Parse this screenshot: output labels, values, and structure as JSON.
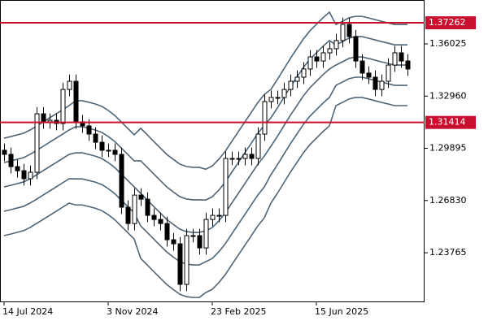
{
  "chart_data": {
    "type": "candlestick",
    "categories": [
      "14 Jul 2024",
      null,
      null,
      null,
      null,
      null,
      null,
      null,
      null,
      null,
      null,
      null,
      null,
      null,
      null,
      null,
      "3 Nov 2024",
      null,
      null,
      null,
      null,
      null,
      null,
      null,
      null,
      null,
      null,
      null,
      null,
      null,
      null,
      null,
      "23 Feb 2025",
      null,
      null,
      null,
      null,
      null,
      null,
      null,
      null,
      null,
      null,
      null,
      null,
      null,
      null,
      null,
      "15 Jun 2025",
      null,
      null,
      null,
      null,
      null,
      null,
      null,
      null,
      null,
      null,
      null,
      null,
      null,
      null
    ],
    "open": [
      1.2978,
      1.2954,
      1.2882,
      1.2858,
      1.2811,
      1.2849,
      1.3192,
      1.3145,
      1.3154,
      1.3135,
      1.3335,
      1.3383,
      1.3145,
      1.3121,
      1.3073,
      1.3025,
      1.2978,
      1.2978,
      1.2954,
      1.2644,
      1.2548,
      1.2715,
      1.2691,
      1.2596,
      1.2572,
      1.2548,
      1.2453,
      1.2429,
      1.2191,
      1.2477,
      1.2477,
      1.2405,
      1.2572,
      1.2596,
      1.2596,
      1.293,
      1.293,
      1.293,
      1.2954,
      1.293,
      1.3073,
      1.3264,
      1.3288,
      1.3288,
      1.3335,
      1.3383,
      1.3407,
      1.3455,
      1.3526,
      1.3502,
      1.355,
      1.3574,
      1.3622,
      1.3717,
      1.3645,
      1.3502,
      1.3431,
      1.3407,
      1.3335,
      1.3383,
      1.3478,
      1.355,
      1.3502
    ],
    "high": [
      1.3018,
      1.2994,
      1.2922,
      1.2898,
      1.2889,
      1.3232,
      1.3232,
      1.3194,
      1.3194,
      1.3375,
      1.3423,
      1.3423,
      1.3185,
      1.3161,
      1.3113,
      1.3065,
      1.3018,
      1.3018,
      1.2994,
      1.2684,
      1.2755,
      1.2755,
      1.2731,
      1.2636,
      1.2612,
      1.2588,
      1.2493,
      1.2469,
      1.2517,
      1.2517,
      1.2517,
      1.2612,
      1.2636,
      1.2636,
      1.297,
      1.297,
      1.297,
      1.2994,
      1.2994,
      1.3113,
      1.3304,
      1.3328,
      1.3328,
      1.3375,
      1.3423,
      1.3447,
      1.3495,
      1.3566,
      1.3566,
      1.359,
      1.3614,
      1.3662,
      1.3757,
      1.3757,
      1.3685,
      1.3542,
      1.3471,
      1.3447,
      1.3423,
      1.3518,
      1.359,
      1.359,
      1.3542
    ],
    "low": [
      1.2914,
      1.2842,
      1.2818,
      1.2771,
      1.2771,
      1.2809,
      1.3105,
      1.3105,
      1.3095,
      1.3095,
      1.3295,
      1.3105,
      1.3081,
      1.3033,
      1.2985,
      1.2938,
      1.2938,
      1.2914,
      1.2604,
      1.2508,
      1.2508,
      1.2651,
      1.2556,
      1.2532,
      1.2508,
      1.2413,
      1.2389,
      1.2151,
      1.2151,
      1.2437,
      1.2365,
      1.2365,
      1.2532,
      1.2556,
      1.2556,
      1.289,
      1.289,
      1.289,
      1.289,
      1.289,
      1.3033,
      1.3224,
      1.3248,
      1.3248,
      1.3295,
      1.3343,
      1.3367,
      1.3415,
      1.3462,
      1.3462,
      1.351,
      1.3534,
      1.3582,
      1.3605,
      1.3462,
      1.3391,
      1.3367,
      1.3295,
      1.3295,
      1.3343,
      1.3438,
      1.3462,
      1.3415
    ],
    "close": [
      1.2954,
      1.2882,
      1.2858,
      1.2811,
      1.2849,
      1.3192,
      1.3145,
      1.3154,
      1.3135,
      1.3335,
      1.3383,
      1.3145,
      1.3121,
      1.3073,
      1.3025,
      1.2978,
      1.2978,
      1.2954,
      1.2644,
      1.2548,
      1.2715,
      1.2691,
      1.2596,
      1.2572,
      1.2548,
      1.2453,
      1.2429,
      1.2191,
      1.2477,
      1.2477,
      1.2405,
      1.2572,
      1.2596,
      1.2596,
      1.293,
      1.293,
      1.293,
      1.2954,
      1.293,
      1.3073,
      1.3264,
      1.3288,
      1.3288,
      1.3335,
      1.3383,
      1.3407,
      1.3455,
      1.3526,
      1.3502,
      1.355,
      1.3574,
      1.3622,
      1.3717,
      1.3645,
      1.3502,
      1.3431,
      1.3407,
      1.3335,
      1.3383,
      1.3478,
      1.355,
      1.3502,
      1.3455
    ],
    "bands": [
      {
        "values": [
          1.3049,
          1.3058,
          1.3068,
          1.3078,
          1.3097,
          1.312,
          1.3144,
          1.3168,
          1.3192,
          1.3216,
          1.324,
          1.3269,
          1.3269,
          1.326,
          1.325,
          1.3236,
          1.3212,
          1.3183,
          1.3145,
          1.3107,
          1.3069,
          1.3107,
          1.3069,
          1.303,
          1.2992,
          1.2954,
          1.2925,
          1.2897,
          1.2883,
          1.2878,
          1.2878,
          1.2867,
          1.2886,
          1.2925,
          1.2972,
          1.303,
          1.3087,
          1.3144,
          1.3201,
          1.3258,
          1.3306,
          1.3335,
          1.3393,
          1.3455,
          1.3517,
          1.3574,
          1.3631,
          1.3679,
          1.3717,
          1.3755,
          1.3789,
          1.3716,
          1.3735,
          1.3755,
          1.3764,
          1.3764,
          1.3755,
          1.3745,
          1.3735,
          1.3726,
          1.3716,
          1.3716,
          1.3716
        ]
      },
      {
        "values": [
          1.2906,
          1.2915,
          1.2925,
          1.2935,
          1.2954,
          1.2977,
          1.3001,
          1.3025,
          1.3049,
          1.3073,
          1.3097,
          1.3116,
          1.3116,
          1.3107,
          1.3097,
          1.3083,
          1.3059,
          1.303,
          1.2992,
          1.2954,
          1.2916,
          1.2916,
          1.2878,
          1.2839,
          1.2801,
          1.2763,
          1.2734,
          1.2706,
          1.2692,
          1.2687,
          1.2687,
          1.2686,
          1.2705,
          1.2744,
          1.2791,
          1.2849,
          1.2906,
          1.2963,
          1.302,
          1.3077,
          1.3125,
          1.3168,
          1.3226,
          1.3288,
          1.335,
          1.3407,
          1.3464,
          1.3512,
          1.355,
          1.3588,
          1.3622,
          1.3597,
          1.3616,
          1.3636,
          1.3645,
          1.3645,
          1.3636,
          1.3626,
          1.3616,
          1.3607,
          1.3597,
          1.3597,
          1.3597
        ]
      },
      {
        "values": [
          1.2763,
          1.2772,
          1.2782,
          1.2792,
          1.2811,
          1.2834,
          1.2858,
          1.2882,
          1.2906,
          1.293,
          1.2954,
          1.2963,
          1.2963,
          1.2954,
          1.2944,
          1.293,
          1.2906,
          1.2877,
          1.2839,
          1.2801,
          1.2763,
          1.2725,
          1.2687,
          1.2648,
          1.261,
          1.2572,
          1.2543,
          1.2515,
          1.2501,
          1.2496,
          1.2496,
          1.2505,
          1.2524,
          1.2563,
          1.261,
          1.2668,
          1.2725,
          1.2782,
          1.2839,
          1.2896,
          1.2944,
          1.3001,
          1.3059,
          1.3121,
          1.3183,
          1.324,
          1.3297,
          1.3345,
          1.3383,
          1.3421,
          1.3455,
          1.3478,
          1.3497,
          1.3517,
          1.3526,
          1.3526,
          1.3517,
          1.3507,
          1.3497,
          1.3488,
          1.3478,
          1.3478,
          1.3478
        ]
      },
      {
        "values": [
          1.262,
          1.2629,
          1.2639,
          1.2649,
          1.2668,
          1.2691,
          1.2715,
          1.2739,
          1.2763,
          1.2787,
          1.2811,
          1.281,
          1.281,
          1.2801,
          1.2791,
          1.2777,
          1.2753,
          1.2724,
          1.2686,
          1.2648,
          1.261,
          1.2534,
          1.2496,
          1.2457,
          1.2419,
          1.2381,
          1.2352,
          1.2324,
          1.231,
          1.2305,
          1.2305,
          1.2324,
          1.2343,
          1.2382,
          1.2429,
          1.2487,
          1.2544,
          1.2601,
          1.2658,
          1.2715,
          1.2763,
          1.2834,
          1.2892,
          1.2954,
          1.3016,
          1.3073,
          1.313,
          1.3178,
          1.3216,
          1.3254,
          1.3288,
          1.3359,
          1.3378,
          1.3398,
          1.3407,
          1.3407,
          1.3398,
          1.3388,
          1.3378,
          1.3369,
          1.3359,
          1.3359,
          1.3359
        ]
      },
      {
        "values": [
          1.2477,
          1.2486,
          1.2496,
          1.2506,
          1.2525,
          1.2548,
          1.2572,
          1.2596,
          1.262,
          1.2644,
          1.2668,
          1.2657,
          1.2657,
          1.2648,
          1.2638,
          1.2624,
          1.26,
          1.2571,
          1.2533,
          1.2495,
          1.2457,
          1.2343,
          1.2305,
          1.2266,
          1.2228,
          1.219,
          1.2161,
          1.2133,
          1.2119,
          1.2114,
          1.2114,
          1.2143,
          1.2162,
          1.2201,
          1.2248,
          1.2306,
          1.2363,
          1.242,
          1.2477,
          1.2534,
          1.2582,
          1.2667,
          1.2725,
          1.2787,
          1.2849,
          1.2906,
          1.2963,
          1.3011,
          1.3049,
          1.3087,
          1.3121,
          1.324,
          1.3259,
          1.3279,
          1.3288,
          1.3288,
          1.3279,
          1.3269,
          1.3259,
          1.325,
          1.324,
          1.324,
          1.324
        ]
      }
    ],
    "band_color": "#4d6477",
    "up_color": "#ffffff",
    "down_color": "#000000",
    "levels": [
      1.37262,
      1.31414
    ],
    "level_color": "#c8102e",
    "ylim": [
      1.2086,
      1.386
    ],
    "yticks": [
      1.36025,
      {
        "value": 1.3296,
        "label": "1.32960"
      },
      1.29895,
      {
        "value": 1.2683,
        "label": "1.26830"
      },
      1.23765
    ]
  }
}
